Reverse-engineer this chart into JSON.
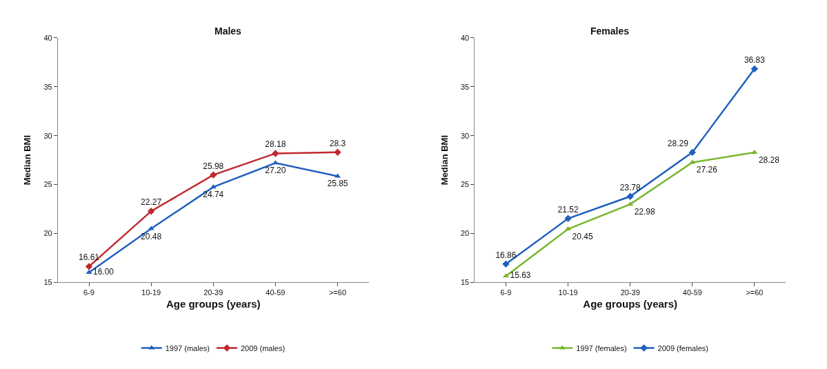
{
  "chart_data": [
    {
      "type": "line",
      "title": "Males",
      "xlabel": "Age groups (years)",
      "ylabel": "Median BMI",
      "categories": [
        "6-9",
        "10-19",
        "20-39",
        "40-59",
        ">=60"
      ],
      "series": [
        {
          "name": "1997 (males)",
          "color": "#1f5fbf",
          "marker": "triangle",
          "values": [
            16.0,
            20.48,
            24.74,
            27.2,
            25.85
          ],
          "value_labels": [
            "16.00",
            "20.48",
            "24.74",
            "27.20",
            "25.85"
          ]
        },
        {
          "name": "2009 (males)",
          "color": "#c0282d",
          "marker": "diamond",
          "values": [
            16.61,
            22.27,
            25.98,
            28.18,
            28.3
          ],
          "value_labels": [
            "16.61",
            "22.27",
            "25.98",
            "28.18",
            "28.3"
          ]
        }
      ],
      "ylim": [
        15,
        40
      ],
      "yticks": [
        15,
        20,
        25,
        30,
        35,
        40
      ],
      "legend": "bottom",
      "line_style": "solid"
    },
    {
      "type": "line",
      "title": "Females",
      "xlabel": "Age groups (years)",
      "ylabel": "Median BMI",
      "categories": [
        "6-9",
        "10-19",
        "20-39",
        "40-59",
        ">=60"
      ],
      "series": [
        {
          "name": "1997 (females)",
          "color": "#7ab52f",
          "marker": "triangle",
          "values": [
            15.63,
            20.45,
            22.98,
            27.26,
            28.28
          ],
          "value_labels": [
            "15.63",
            "20.45",
            "22.98",
            "27.26",
            "28.28"
          ]
        },
        {
          "name": "2009 (females)",
          "color": "#1f5fbf",
          "marker": "diamond",
          "values": [
            16.86,
            21.52,
            23.78,
            28.29,
            36.83
          ],
          "value_labels": [
            "16.86",
            "21.52",
            "23.78",
            "28.29",
            "36.83"
          ]
        }
      ],
      "ylim": [
        15,
        40
      ],
      "yticks": [
        15,
        20,
        25,
        30,
        35,
        40
      ],
      "legend": "bottom",
      "line_style": "solid"
    }
  ]
}
